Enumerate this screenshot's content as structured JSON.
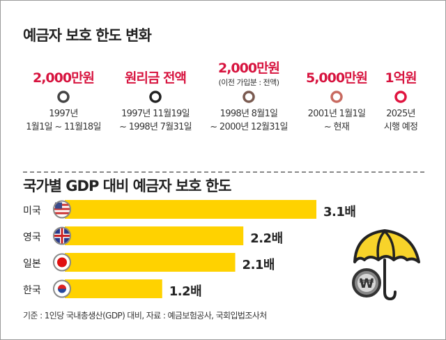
{
  "timeline": {
    "title": "예금자 보호 한도 변화",
    "events": [
      {
        "amount": "2,000만원",
        "note": "",
        "period": [
          "1997년",
          "1월1일 ~ 11월18일"
        ]
      },
      {
        "amount": "원리금 전액",
        "note": "",
        "period": [
          "1997년 11월19일",
          "~ 1998년 7월31일"
        ]
      },
      {
        "amount": "2,000만원",
        "note": "(이전 가입분 : 전액)",
        "period": [
          "1998년 8월1일",
          "~ 2000년 12월31일"
        ]
      },
      {
        "amount": "5,000만원",
        "note": "",
        "period": [
          "2001년 1월1일",
          "~ 현재"
        ]
      },
      {
        "amount": "1억원",
        "note": "",
        "period": [
          "2025년",
          "시행 예정"
        ]
      }
    ],
    "colors": {
      "start": "#555555",
      "end": "#e0143f",
      "accent": "#d7143f"
    }
  },
  "chart_data": {
    "type": "bar",
    "orientation": "horizontal",
    "title": "국가별 GDP 대비 예금자 보호 한도",
    "categories": [
      "미국",
      "영국",
      "일본",
      "한국"
    ],
    "values": [
      3.1,
      2.2,
      2.1,
      1.2
    ],
    "value_labels": [
      "3.1배",
      "2.2배",
      "2.1배",
      "1.2배"
    ],
    "bar_color": "#ffd200",
    "flags": [
      "us-flag-icon",
      "uk-flag-icon",
      "japan-flag-icon",
      "korea-flag-icon"
    ],
    "footnote": "기준 : 1인당 국내총생산(GDP) 대비, 자료 : 예금보험공사, 국회입법조사처"
  },
  "illustration": "umbrella-won-coin-icon"
}
